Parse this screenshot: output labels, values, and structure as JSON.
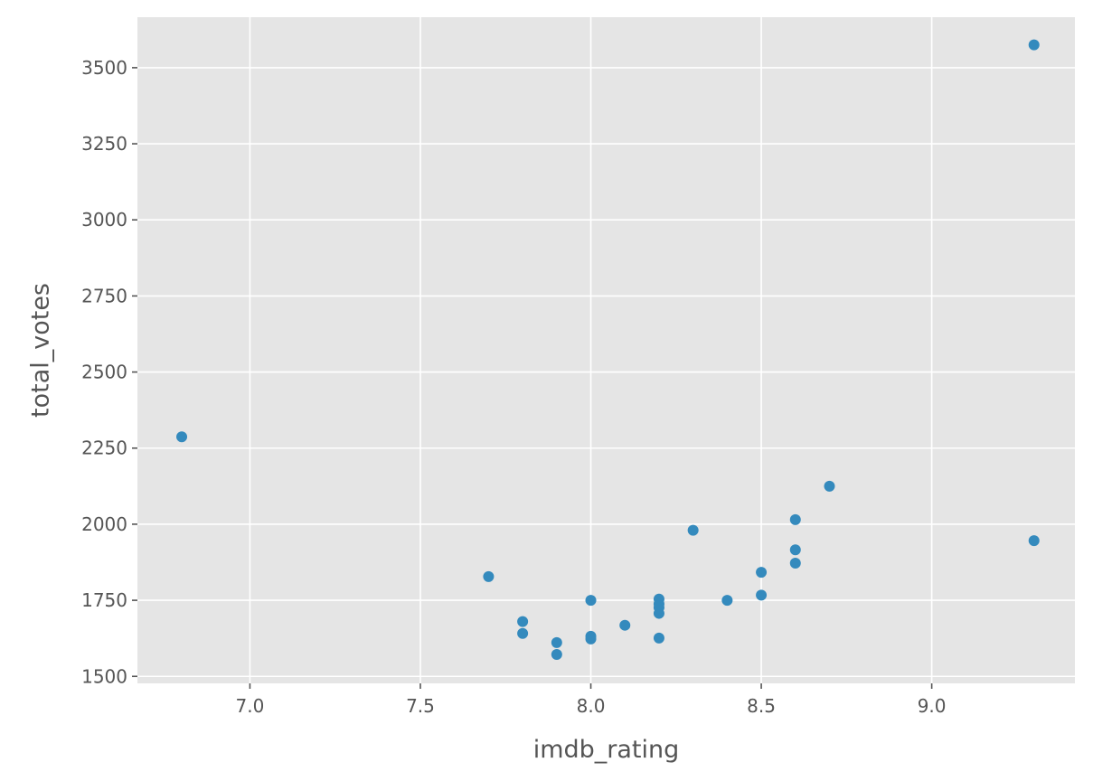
{
  "chart_data": {
    "type": "scatter",
    "xlabel": "imdb_rating",
    "ylabel": "total_votes",
    "xlim": [
      6.67,
      9.42
    ],
    "ylim": [
      1477,
      3666
    ],
    "xticks": [
      7.0,
      7.5,
      8.0,
      8.5,
      9.0
    ],
    "xtick_labels": [
      "7.0",
      "7.5",
      "8.0",
      "8.5",
      "9.0"
    ],
    "yticks": [
      1500,
      1750,
      2000,
      2250,
      2500,
      2750,
      3000,
      3250,
      3500
    ],
    "ytick_labels": [
      "1500",
      "1750",
      "2000",
      "2250",
      "2500",
      "2750",
      "3000",
      "3250",
      "3500"
    ],
    "grid": true,
    "background": "#E5E5E5",
    "point_color": "#348ABD",
    "points": [
      {
        "x": 6.8,
        "y": 2287
      },
      {
        "x": 7.7,
        "y": 1828
      },
      {
        "x": 7.8,
        "y": 1680
      },
      {
        "x": 7.8,
        "y": 1641
      },
      {
        "x": 7.9,
        "y": 1611
      },
      {
        "x": 7.9,
        "y": 1572
      },
      {
        "x": 8.0,
        "y": 1750
      },
      {
        "x": 8.0,
        "y": 1632
      },
      {
        "x": 8.0,
        "y": 1623
      },
      {
        "x": 8.1,
        "y": 1668
      },
      {
        "x": 8.2,
        "y": 1754
      },
      {
        "x": 8.2,
        "y": 1738
      },
      {
        "x": 8.2,
        "y": 1726
      },
      {
        "x": 8.2,
        "y": 1707
      },
      {
        "x": 8.2,
        "y": 1626
      },
      {
        "x": 8.3,
        "y": 1980
      },
      {
        "x": 8.4,
        "y": 1750
      },
      {
        "x": 8.5,
        "y": 1842
      },
      {
        "x": 8.5,
        "y": 1767
      },
      {
        "x": 8.6,
        "y": 2015
      },
      {
        "x": 8.6,
        "y": 1916
      },
      {
        "x": 8.6,
        "y": 1872
      },
      {
        "x": 8.7,
        "y": 2125
      },
      {
        "x": 9.3,
        "y": 3575
      },
      {
        "x": 9.3,
        "y": 1946
      }
    ]
  }
}
